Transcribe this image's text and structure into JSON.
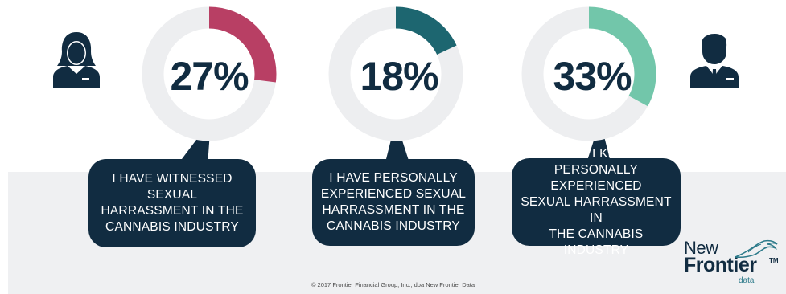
{
  "chart_data": [
    {
      "type": "pie",
      "label": "27%",
      "values": [
        27,
        73
      ],
      "caption": "I HAVE WITNESSED SEXUAL\nHARRASSMENT IN THE\nCANNABIS INDUSTRY",
      "colors": [
        "#b83f64",
        "#edeef0"
      ]
    },
    {
      "type": "pie",
      "label": "18%",
      "values": [
        18,
        82
      ],
      "caption": "I HAVE PERSONALLY\nEXPERIENCED SEXUAL\nHARRASSMENT IN THE\nCANNABIS INDUSTRY",
      "colors": [
        "#1d6670",
        "#edeef0"
      ]
    },
    {
      "type": "pie",
      "label": "33%",
      "values": [
        33,
        67
      ],
      "caption": "SOMEONE I KNOW HAS\nPERSONALLY EXPERIENCED\nSEXUAL HARRASSMENT IN\nTHE CANNABIS INDUSTRY",
      "colors": [
        "#72c6aa",
        "#edeef0"
      ]
    }
  ],
  "icons": {
    "left": "businesswoman-icon",
    "right": "businessman-icon",
    "color": "#112c41"
  },
  "footer": {
    "copyright": "© 2017 Frontier Financial Group, Inc., dba New Frontier Data"
  },
  "logo": {
    "line1": "New",
    "line2": "Frontier",
    "tm": "TM",
    "line3": "data"
  }
}
